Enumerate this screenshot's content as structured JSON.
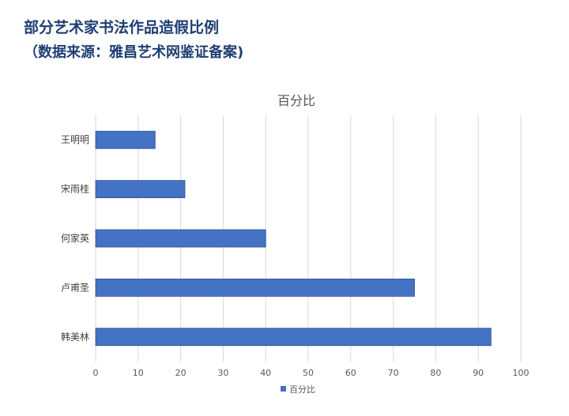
{
  "header": {
    "title": "部分艺术家书法作品造假比例",
    "subtitle": "（数据来源：雅昌艺术网鉴证备案)"
  },
  "chart_data": {
    "type": "bar",
    "orientation": "horizontal",
    "title": "百分比",
    "categories": [
      "王明明",
      "宋雨桂",
      "何家英",
      "卢甫圣",
      "韩美林"
    ],
    "series": [
      {
        "name": "百分比",
        "values": [
          14,
          21,
          40,
          75,
          93
        ],
        "color": "#4472c4"
      }
    ],
    "xlim": [
      0,
      100
    ],
    "xticks": [
      0,
      10,
      20,
      30,
      40,
      50,
      60,
      70,
      80,
      90,
      100
    ],
    "grid": "vertical",
    "legend": "bottom"
  }
}
